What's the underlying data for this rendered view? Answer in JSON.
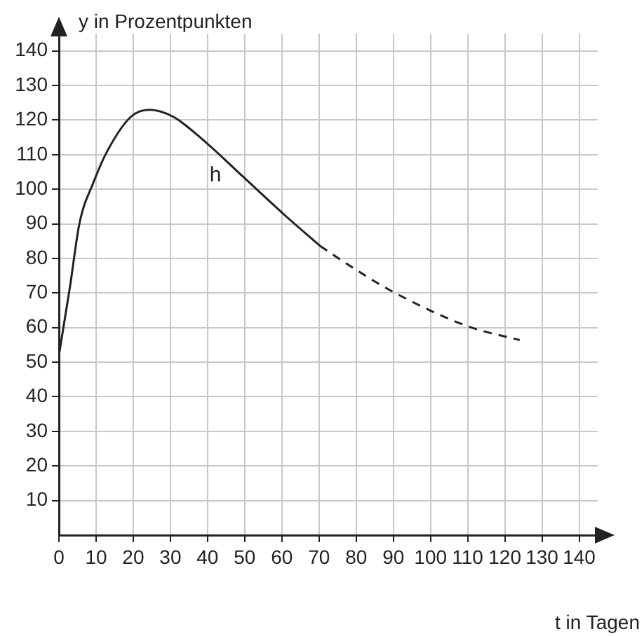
{
  "chart_data": {
    "type": "line",
    "xlabel": "t in Tagen",
    "ylabel": "y in Prozentpunkten",
    "series": [
      {
        "name": "h",
        "color": "#222222",
        "line_style": "solid",
        "x": [
          0,
          3,
          5.5,
          9.3,
          13,
          19.4,
          24.4,
          30.7,
          39.5,
          49.6,
          60.8,
          70.3
        ],
        "values": [
          52,
          72,
          90,
          102,
          111,
          121,
          123,
          121,
          113.6,
          103.6,
          92.5,
          83.6
        ]
      },
      {
        "color": "#222222",
        "line_style": "dashed",
        "x": [
          70.3,
          80,
          89.8,
          110,
          124
        ],
        "values": [
          83.6,
          76.7,
          70.4,
          60.4,
          56.4
        ]
      }
    ],
    "xlim": [
      0,
      145
    ],
    "xticks": [
      0,
      10,
      20,
      30,
      40,
      50,
      60,
      70,
      80,
      90,
      100,
      110,
      120,
      130,
      140
    ],
    "ylim": [
      0,
      145
    ],
    "yticks": [
      10,
      20,
      30,
      40,
      50,
      60,
      70,
      80,
      90,
      100,
      110,
      120,
      130,
      140
    ],
    "grid": true,
    "legend": false,
    "marker": "none"
  }
}
